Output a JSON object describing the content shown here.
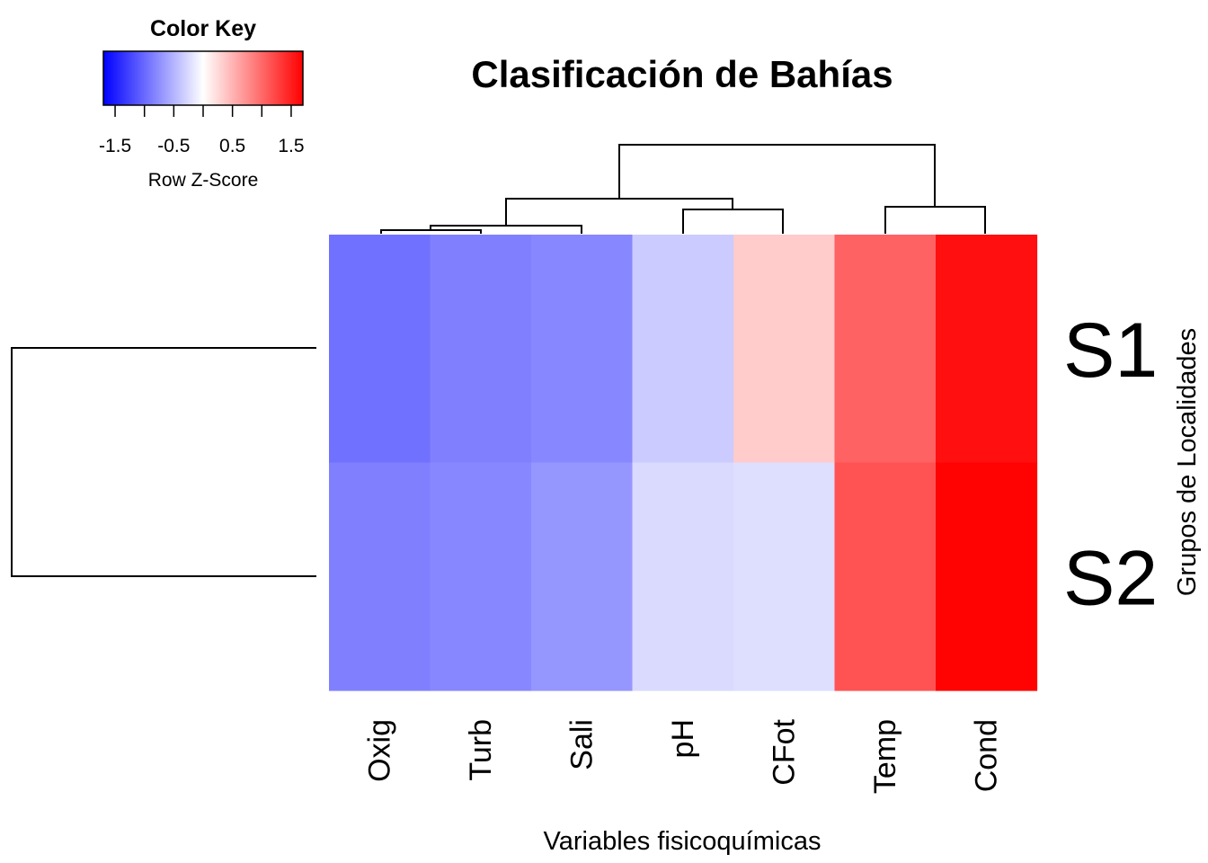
{
  "chart_data": {
    "type": "heatmap",
    "title": "Clasificación de Bahías",
    "xlabel": "Variables fisicoquímicas",
    "ylabel": "Grupos de Localidades",
    "columns": [
      "Oxig",
      "Turb",
      "Sali",
      "pH",
      "CFot",
      "Temp",
      "Cond"
    ],
    "rows": [
      "S1",
      "S2"
    ],
    "values": [
      [
        -0.95,
        -0.85,
        -0.8,
        -0.35,
        0.35,
        1.05,
        1.6
      ],
      [
        -0.85,
        -0.8,
        -0.7,
        -0.25,
        -0.22,
        1.15,
        1.68
      ]
    ],
    "color_key": {
      "title": "Color Key",
      "label": "Row Z-Score",
      "ticks": [
        "-1.5",
        "-0.5",
        "0.5",
        "1.5"
      ],
      "range": [
        -1.7,
        1.7
      ],
      "low_color": "#0000ff",
      "mid_color": "#ffffff",
      "high_color": "#ff0000"
    },
    "column_dendrogram": true,
    "row_dendrogram": true
  }
}
